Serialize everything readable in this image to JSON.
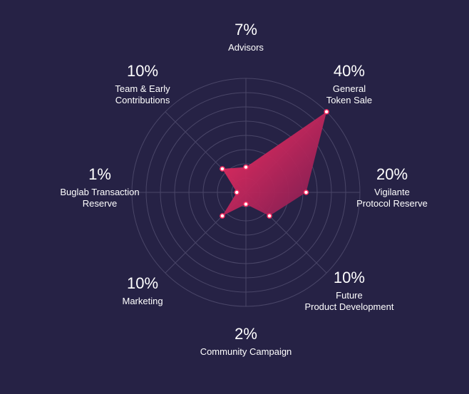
{
  "chart_data": {
    "type": "radar",
    "title": "",
    "scale_max": 40,
    "rings": 8,
    "grid": true,
    "colors": {
      "background": "#262245",
      "grid": "#4a4668",
      "fill_start": "#ff2e63",
      "fill_end": "#7a1d52",
      "point_stroke": "#ff2e63",
      "point_fill": "#ffffff"
    },
    "categories": [
      {
        "name": "Advisors",
        "value": 7,
        "percent_label": "7%",
        "label_lines": [
          "Advisors"
        ]
      },
      {
        "name": "General Token Sale",
        "value": 40,
        "percent_label": "40%",
        "label_lines": [
          "General",
          "Token Sale"
        ]
      },
      {
        "name": "Vigilante Protocol Reserve",
        "value": 20,
        "percent_label": "20%",
        "label_lines": [
          "Vigilante",
          "Protocol Reserve"
        ]
      },
      {
        "name": "Future Product Development",
        "value": 10,
        "percent_label": "10%",
        "label_lines": [
          "Future",
          "Product Development"
        ]
      },
      {
        "name": "Community Campaign",
        "value": 2,
        "percent_label": "2%",
        "label_lines": [
          "Community Campaign"
        ]
      },
      {
        "name": "Marketing",
        "value": 10,
        "percent_label": "10%",
        "label_lines": [
          "Marketing"
        ]
      },
      {
        "name": "Buglab Transaction Reserve",
        "value": 1,
        "percent_label": "1%",
        "label_lines": [
          "Buglab Transaction",
          "Reserve"
        ]
      },
      {
        "name": "Team & Early Contributions",
        "value": 10,
        "percent_label": "10%",
        "label_lines": [
          "Team & Early",
          "Contributions"
        ]
      }
    ]
  }
}
